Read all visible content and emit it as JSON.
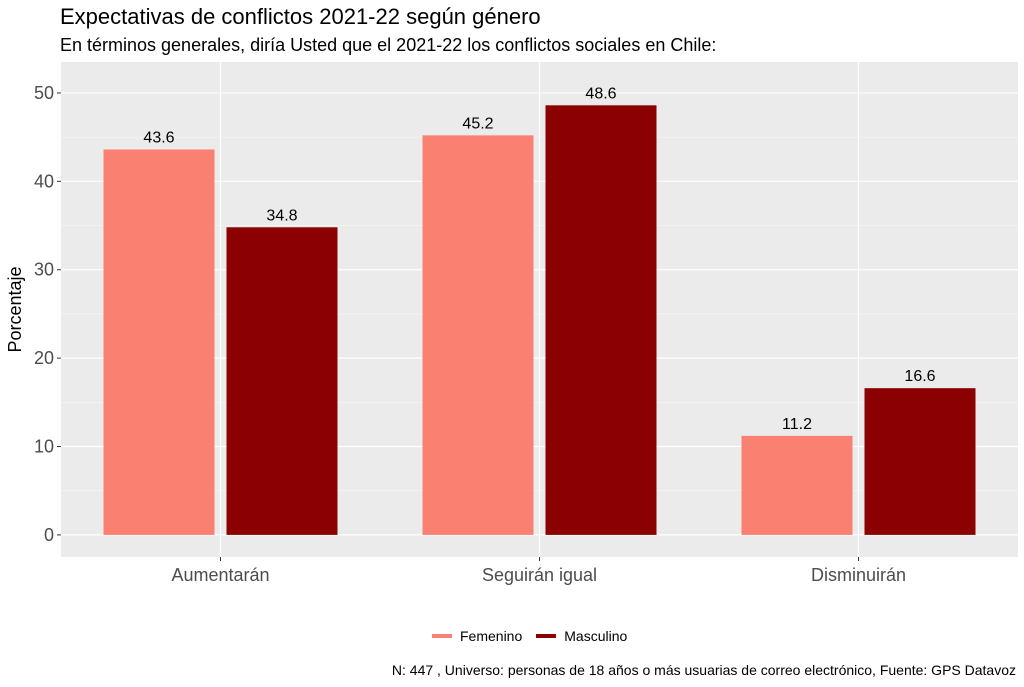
{
  "chart_data": {
    "type": "bar",
    "title": "Expectativas de conflictos 2021-22 según género",
    "subtitle": "En términos generales, diría Usted que el 2021-22 los conflictos sociales en Chile:",
    "xlabel": "",
    "ylabel": "Porcentaje",
    "caption": "N: 447 , Universo: personas de 18 años o más usuarias de correo electrónico, Fuente: GPS Datavoz",
    "categories": [
      "Aumentarán",
      "Seguirán igual",
      "Disminuirán"
    ],
    "series": [
      {
        "name": "Femenino",
        "color": "#FA8072",
        "values": [
          43.6,
          45.2,
          11.2
        ]
      },
      {
        "name": "Masculino",
        "color": "#8B0000",
        "values": [
          34.8,
          48.6,
          16.6
        ]
      }
    ],
    "ylim": [
      -2.5,
      53.5
    ],
    "yticks": [
      0,
      10,
      20,
      30,
      40,
      50
    ],
    "ytick_labels": [
      "0",
      "10",
      "20",
      "30",
      "40",
      "50"
    ],
    "grid": true,
    "legend_position": "bottom"
  }
}
